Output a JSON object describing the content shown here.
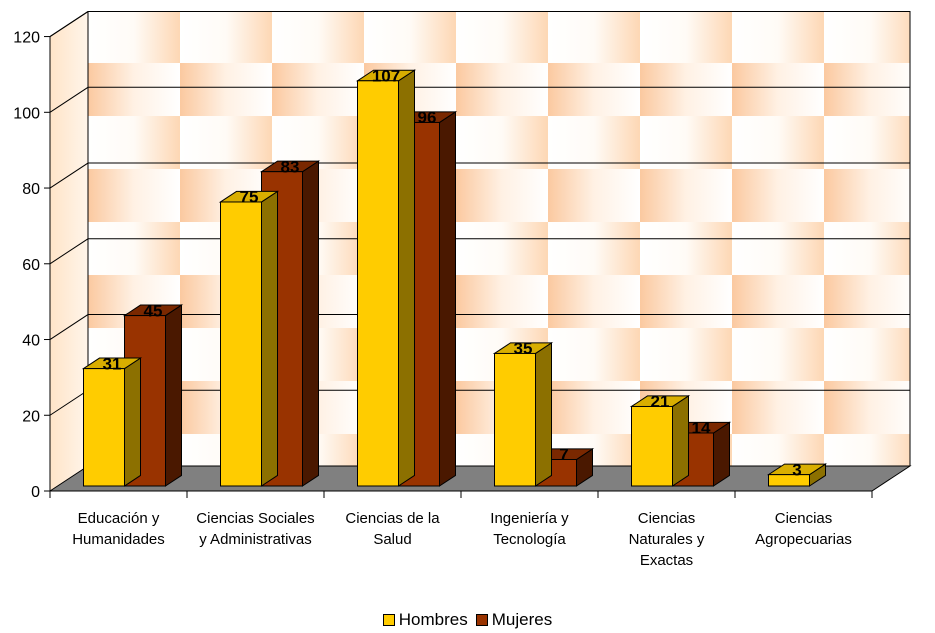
{
  "chart_data": {
    "type": "bar",
    "categories": [
      [
        "Educación y",
        "Humanidades"
      ],
      [
        "Ciencias Sociales",
        "y Administrativas"
      ],
      [
        "Ciencias de la",
        "Salud"
      ],
      [
        "Ingeniería y",
        "Tecnología"
      ],
      [
        "Ciencias",
        "Naturales y",
        "Exactas"
      ],
      [
        "Ciencias",
        "Agropecuarias"
      ]
    ],
    "series": [
      {
        "name": "Hombres",
        "values": [
          31,
          75,
          107,
          35,
          21,
          3
        ],
        "color": "#FFCC00",
        "top_color": "#D9AE00",
        "side_color": "#8C7000"
      },
      {
        "name": "Mujeres",
        "values": [
          45,
          83,
          96,
          7,
          14,
          null
        ],
        "color": "#993300",
        "top_color": "#7A2800",
        "side_color": "#4A1800"
      }
    ],
    "ylim": [
      0,
      120
    ],
    "yticks": [
      "0",
      "20",
      "40",
      "60",
      "80",
      "100",
      "120"
    ],
    "data_labels": true,
    "grid": true,
    "legend_position": "bottom",
    "style": "3d-clustered-column"
  },
  "legend": {
    "items": [
      {
        "label": "Hombres",
        "color": "#FFCC00"
      },
      {
        "label": "Mujeres",
        "color": "#993300"
      }
    ]
  }
}
